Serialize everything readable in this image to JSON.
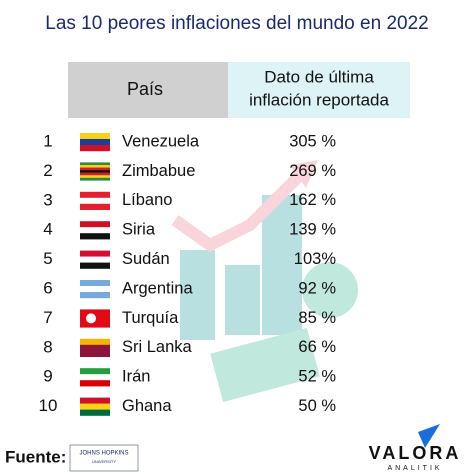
{
  "header": {
    "title": "Las 10 peores inflaciones del mundo en 2022"
  },
  "table": {
    "columns": [
      "País",
      "Dato de última inflación reportada"
    ],
    "rows": [
      [
        1,
        "Venezuela",
        "305 %"
      ],
      [
        2,
        "Zimbabue",
        "269 %"
      ],
      [
        3,
        "Líbano",
        "162 %"
      ],
      [
        4,
        "Siria",
        "139 %"
      ],
      [
        5,
        "Sudán",
        "103%"
      ],
      [
        6,
        "Argentina",
        "92 %"
      ],
      [
        7,
        "Turquía",
        "85 %"
      ],
      [
        8,
        "Sri Lanka",
        "66 %"
      ],
      [
        9,
        "Irán",
        "52 %"
      ],
      [
        10,
        "Ghana",
        "50 %"
      ]
    ]
  },
  "footer": {
    "source_label": "Fuente:",
    "source_logo": [
      "JOHNS HOPKINS",
      "UNIVERSITY"
    ],
    "brand": "VALORA",
    "brand_sub": "ANALITIK"
  }
}
